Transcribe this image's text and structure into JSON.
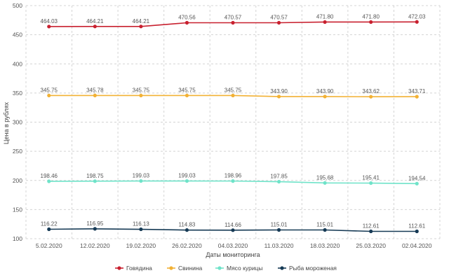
{
  "chart_data": {
    "type": "line",
    "title": "",
    "xlabel": "Даты мониторинга",
    "ylabel": "Цена в рублях",
    "ylim": [
      100,
      500
    ],
    "yticks": [
      "100",
      "150",
      "200",
      "250",
      "300",
      "350",
      "400",
      "450",
      "500"
    ],
    "categories": [
      "5.02.2020",
      "12.02.2020",
      "19.02.2020",
      "26.02.2020",
      "04.03.2020",
      "11.03.2020",
      "18.03.2020",
      "25.03.2020",
      "02.04.2020"
    ],
    "grid": true,
    "legend_position": "bottom",
    "series": [
      {
        "name": "Говядина",
        "color": "#c8202f",
        "values": [
          464.03,
          464.21,
          464.21,
          470.56,
          470.57,
          470.57,
          471.8,
          471.8,
          472.03
        ],
        "labels": [
          "464.03",
          "464.21",
          "464.21",
          "470.56",
          "470.57",
          "470.57",
          "471.80",
          "471.80",
          "472.03"
        ]
      },
      {
        "name": "Свинина",
        "color": "#f2b134",
        "values": [
          345.75,
          345.78,
          345.75,
          345.75,
          345.75,
          343.9,
          343.9,
          343.62,
          343.71
        ],
        "labels": [
          "345.75",
          "345.78",
          "345.75",
          "345.75",
          "345.75",
          "343.90",
          "343.90",
          "343.62",
          "343.71"
        ]
      },
      {
        "name": "Мясо курицы",
        "color": "#6fe3c9",
        "values": [
          198.46,
          198.75,
          199.03,
          199.03,
          198.96,
          197.85,
          195.68,
          195.41,
          194.54
        ],
        "labels": [
          "198.46",
          "198.75",
          "199.03",
          "199.03",
          "198.96",
          "197.85",
          "195.68",
          "195.41",
          "194.54"
        ]
      },
      {
        "name": "Рыба мороженая",
        "color": "#163a55",
        "values": [
          116.22,
          116.95,
          116.13,
          114.83,
          114.66,
          115.01,
          115.01,
          112.61,
          112.61
        ],
        "labels": [
          "116.22",
          "116.95",
          "116.13",
          "114.83",
          "114.66",
          "115.01",
          "115.01",
          "112.61",
          "112.61"
        ]
      }
    ]
  }
}
